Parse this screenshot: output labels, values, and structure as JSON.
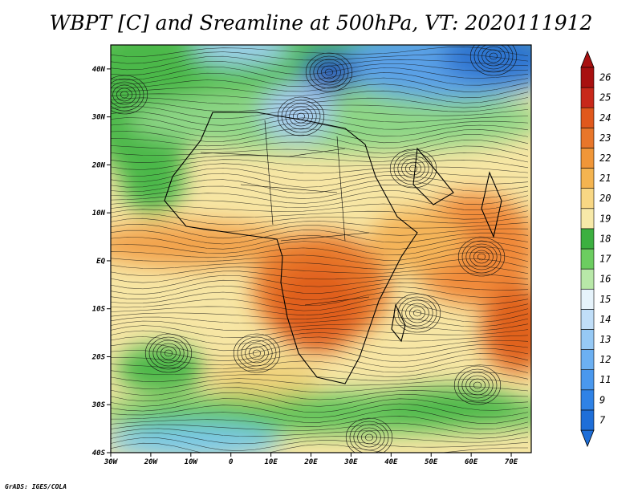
{
  "title": "WBPT [C] and Sreamline at 500hPa, VT: 2020111912",
  "credit": "GrADS: IGES/COLA",
  "map": {
    "lon_range": [
      -30,
      75
    ],
    "lat_range": [
      -40,
      45
    ],
    "lat_ticks": [
      {
        "value": 40,
        "label": "40N"
      },
      {
        "value": 30,
        "label": "30N"
      },
      {
        "value": 20,
        "label": "20N"
      },
      {
        "value": 10,
        "label": "10N"
      },
      {
        "value": 0,
        "label": "EQ"
      },
      {
        "value": -10,
        "label": "10S"
      },
      {
        "value": -20,
        "label": "20S"
      },
      {
        "value": -30,
        "label": "30S"
      },
      {
        "value": -40,
        "label": "40S"
      }
    ],
    "lon_ticks": [
      {
        "value": -30,
        "label": "30W"
      },
      {
        "value": -20,
        "label": "20W"
      },
      {
        "value": -10,
        "label": "10W"
      },
      {
        "value": 0,
        "label": "0"
      },
      {
        "value": 10,
        "label": "10E"
      },
      {
        "value": 20,
        "label": "20E"
      },
      {
        "value": 30,
        "label": "30E"
      },
      {
        "value": 40,
        "label": "40E"
      },
      {
        "value": 50,
        "label": "50E"
      },
      {
        "value": 60,
        "label": "60E"
      },
      {
        "value": 70,
        "label": "70E"
      }
    ]
  },
  "colorbar": {
    "labels": [
      "7",
      "9",
      "11",
      "12",
      "13",
      "14",
      "15",
      "16",
      "17",
      "18",
      "19",
      "20",
      "21",
      "22",
      "23",
      "24",
      "25",
      "26"
    ],
    "colors": [
      "#1e6ed8",
      "#2f82e6",
      "#4a98ee",
      "#6cb0f2",
      "#96c9f5",
      "#c0def8",
      "#e6f3fb",
      "#b8e8a8",
      "#6ccd60",
      "#3cb040",
      "#f7e9a8",
      "#f8d784",
      "#f4b450",
      "#f09638",
      "#e8762a",
      "#e0581c",
      "#c8281a",
      "#a81010"
    ]
  }
}
